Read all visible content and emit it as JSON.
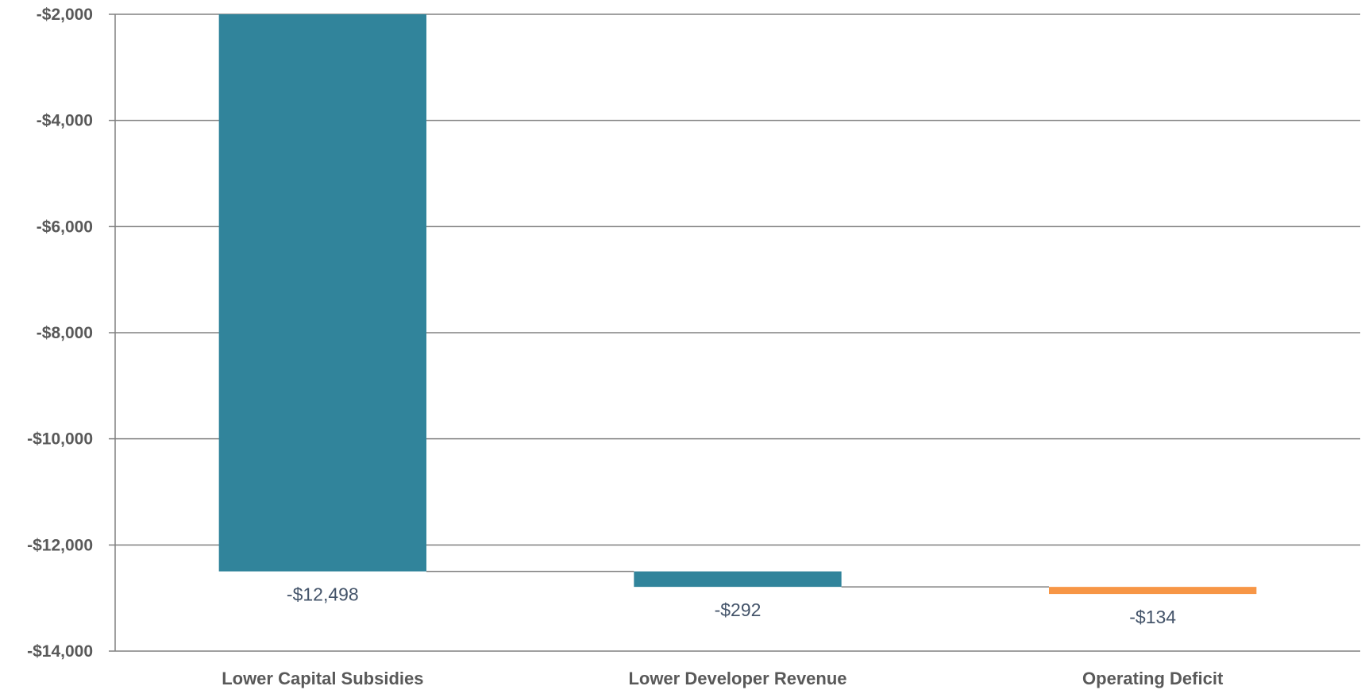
{
  "chart_data": {
    "type": "bar",
    "subtype": "waterfall",
    "title": "",
    "xlabel": "",
    "ylabel": "",
    "ylim": [
      -14000,
      -2000
    ],
    "yticks": [
      -2000,
      -4000,
      -6000,
      -8000,
      -10000,
      -12000,
      -14000
    ],
    "ytick_labels": [
      "-$2,000",
      "-$4,000",
      "-$6,000",
      "-$8,000",
      "-$10,000",
      "-$12,000",
      "-$14,000"
    ],
    "grid": true,
    "legend": "none",
    "categories": [
      "Lower Capital Subsidies",
      "Lower Developer Revenue",
      "Operating Deficit"
    ],
    "values": [
      -12498,
      -292,
      -134
    ],
    "value_labels": [
      "-$12,498",
      "-$292",
      "-$134"
    ],
    "bar_colors": [
      "#31849b",
      "#31849b",
      "#f79646"
    ]
  }
}
